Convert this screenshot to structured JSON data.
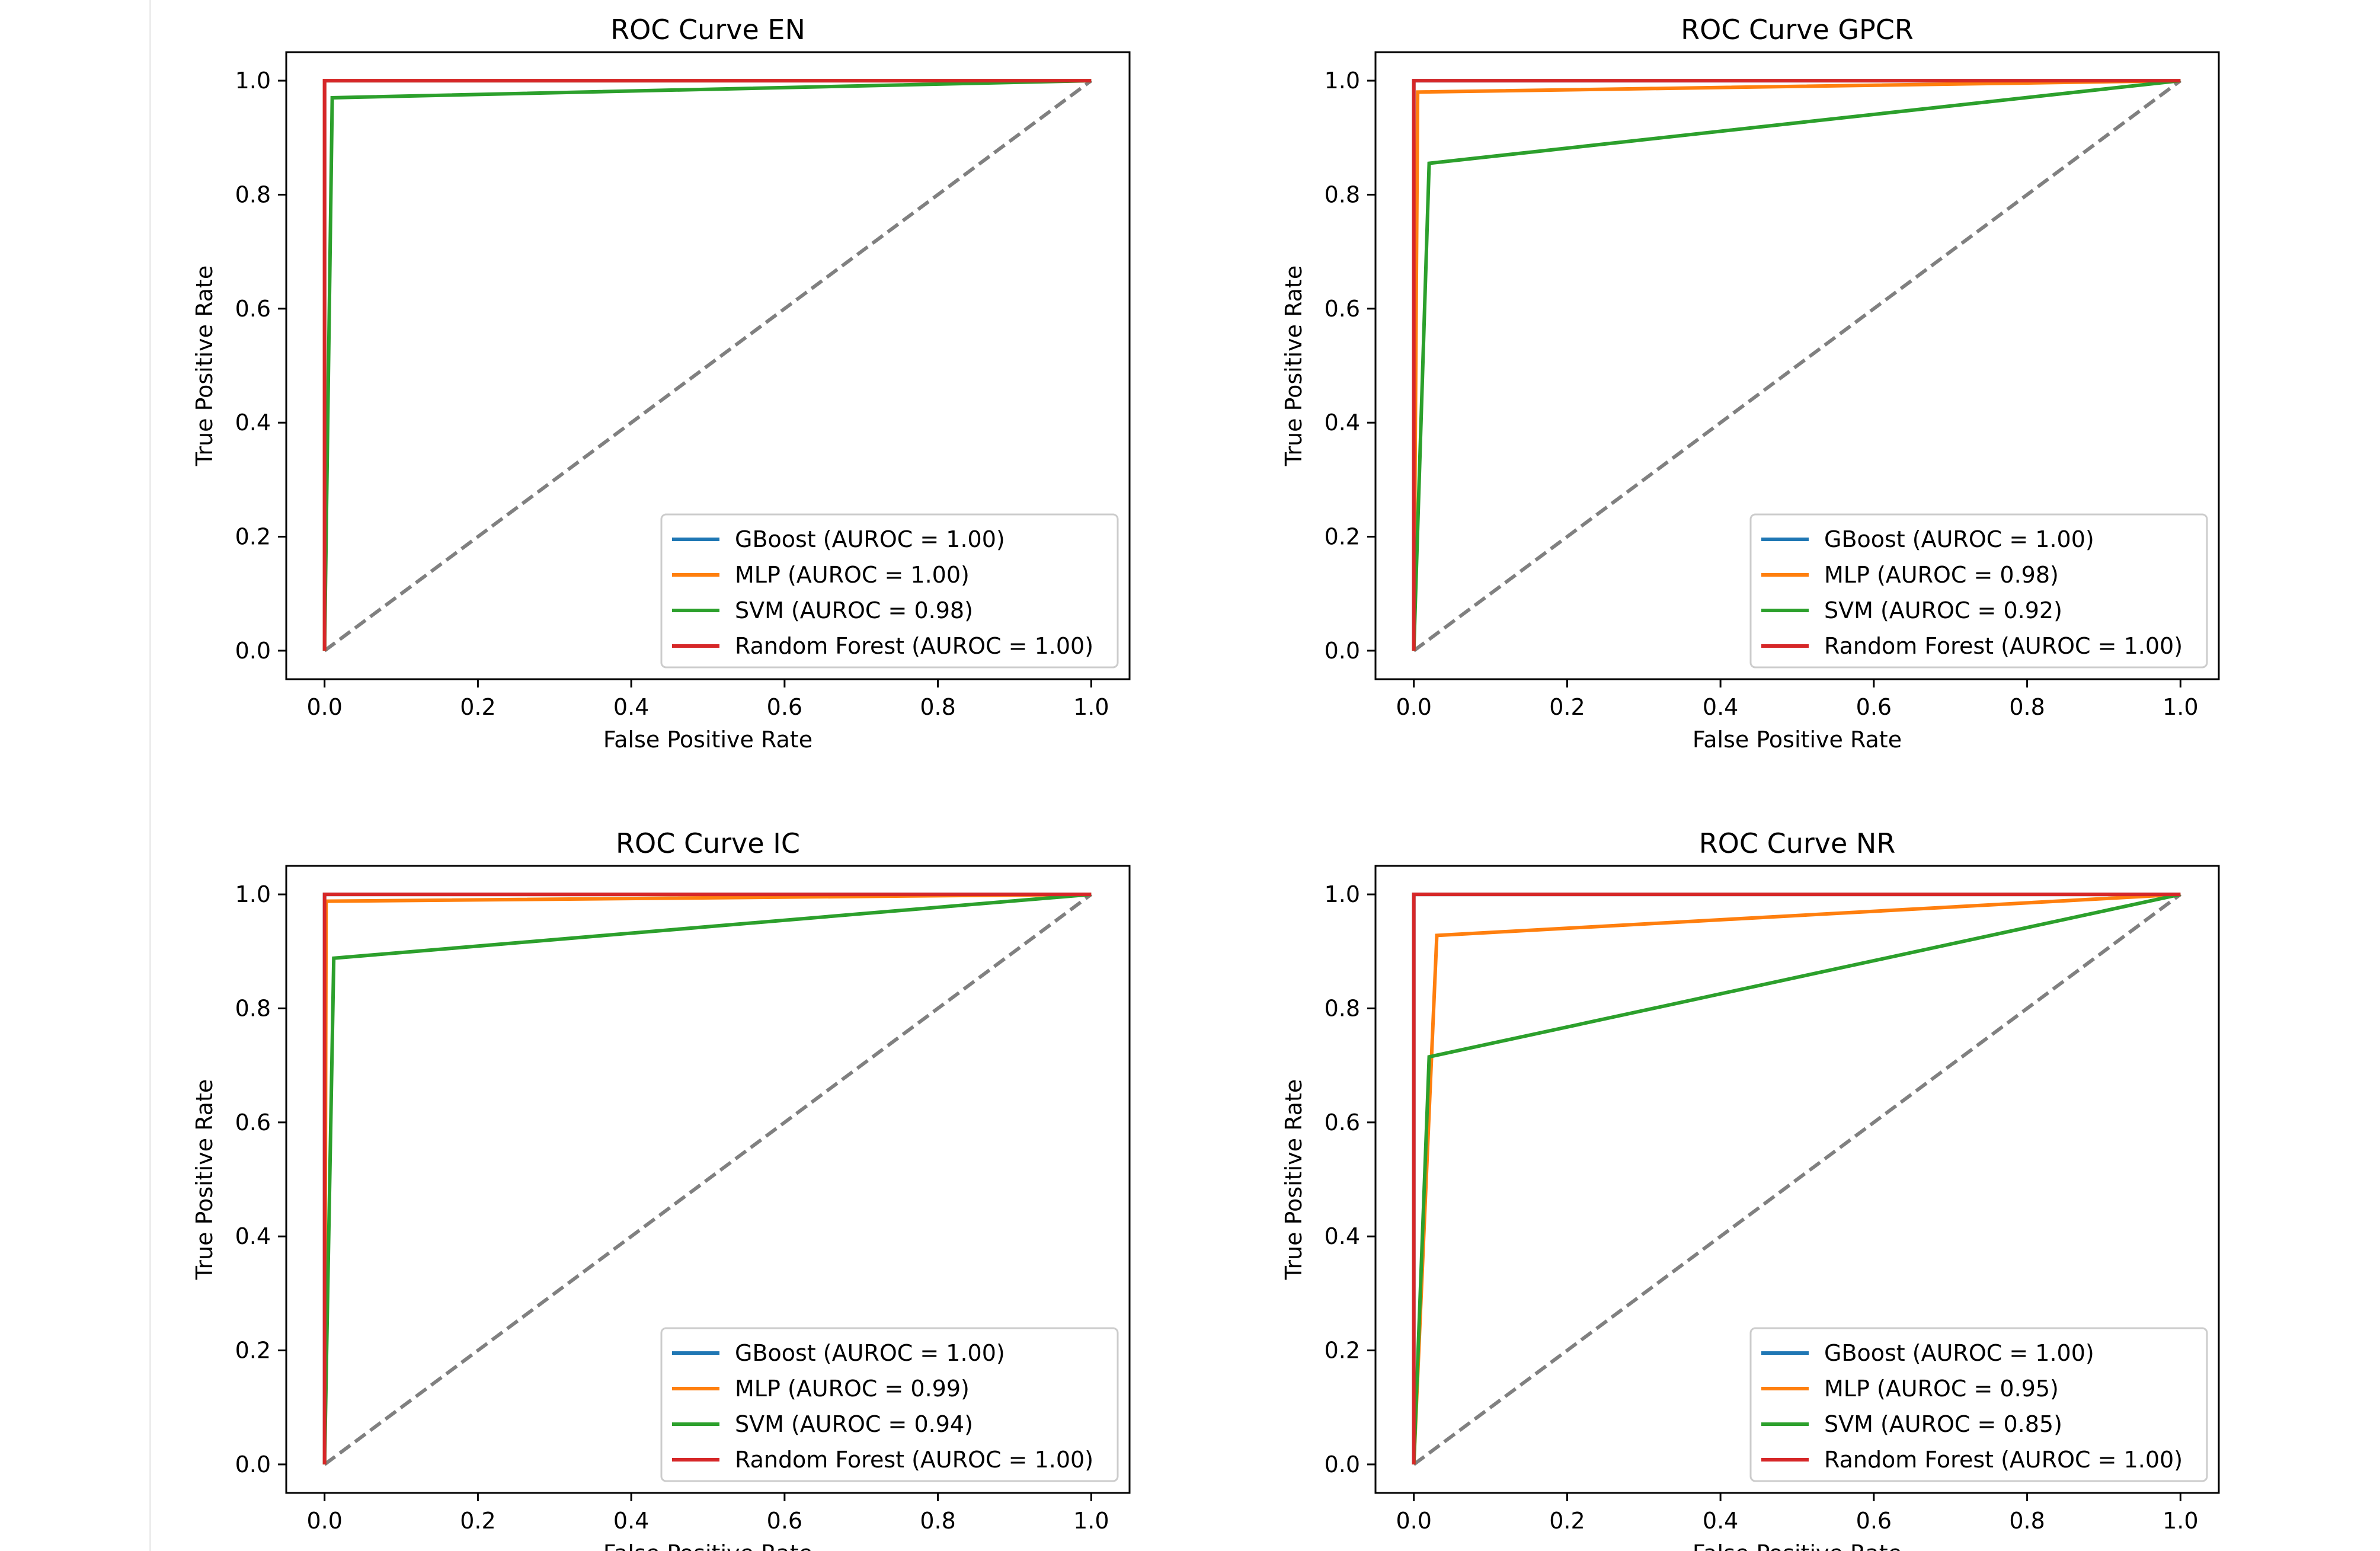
{
  "colors": {
    "GBoost": "#1f77b4",
    "MLP": "#ff7f0e",
    "SVM": "#2ca02c",
    "Random Forest": "#d62728",
    "diagonal": "#808080",
    "axes": "#000000",
    "legend_border": "#cccccc"
  },
  "chart_data": [
    {
      "type": "line",
      "title": "ROC Curve EN",
      "xlabel": "False Positive Rate",
      "ylabel": "True Positive Rate",
      "xlim": [
        -0.05,
        1.05
      ],
      "ylim": [
        -0.05,
        1.05
      ],
      "xticks": [
        "0.0",
        "0.2",
        "0.4",
        "0.6",
        "0.8",
        "1.0"
      ],
      "yticks": [
        "0.0",
        "0.2",
        "0.4",
        "0.6",
        "0.8",
        "1.0"
      ],
      "grid": false,
      "legend_position": "lower right",
      "diagonal": {
        "x": [
          0,
          1
        ],
        "y": [
          0,
          1
        ],
        "style": "dashed"
      },
      "series": [
        {
          "name": "GBoost",
          "label": "GBoost (AUROC = 1.00)",
          "x": [
            0,
            0,
            1
          ],
          "y": [
            0,
            1,
            1
          ]
        },
        {
          "name": "MLP",
          "label": "MLP (AUROC = 1.00)",
          "x": [
            0,
            0,
            1
          ],
          "y": [
            0,
            1,
            1
          ]
        },
        {
          "name": "SVM",
          "label": "SVM (AUROC = 0.98)",
          "x": [
            0,
            0.01,
            1
          ],
          "y": [
            0,
            0.97,
            1
          ]
        },
        {
          "name": "Random Forest",
          "label": "Random Forest (AUROC = 1.00)",
          "x": [
            0,
            0,
            1
          ],
          "y": [
            0,
            1,
            1
          ]
        }
      ]
    },
    {
      "type": "line",
      "title": "ROC Curve GPCR",
      "xlabel": "False Positive Rate",
      "ylabel": "True Positive Rate",
      "xlim": [
        -0.05,
        1.05
      ],
      "ylim": [
        -0.05,
        1.05
      ],
      "xticks": [
        "0.0",
        "0.2",
        "0.4",
        "0.6",
        "0.8",
        "1.0"
      ],
      "yticks": [
        "0.0",
        "0.2",
        "0.4",
        "0.6",
        "0.8",
        "1.0"
      ],
      "grid": false,
      "legend_position": "lower right",
      "diagonal": {
        "x": [
          0,
          1
        ],
        "y": [
          0,
          1
        ],
        "style": "dashed"
      },
      "series": [
        {
          "name": "GBoost",
          "label": "GBoost (AUROC = 1.00)",
          "x": [
            0,
            0,
            1
          ],
          "y": [
            0,
            1,
            1
          ]
        },
        {
          "name": "MLP",
          "label": "MLP (AUROC = 0.98)",
          "x": [
            0,
            0.005,
            1
          ],
          "y": [
            0,
            0.98,
            1
          ]
        },
        {
          "name": "SVM",
          "label": "SVM (AUROC = 0.92)",
          "x": [
            0,
            0.02,
            1
          ],
          "y": [
            0,
            0.855,
            1
          ]
        },
        {
          "name": "Random Forest",
          "label": "Random Forest (AUROC = 1.00)",
          "x": [
            0,
            0,
            1
          ],
          "y": [
            0,
            1,
            1
          ]
        }
      ]
    },
    {
      "type": "line",
      "title": "ROC Curve IC",
      "xlabel": "False Positive Rate",
      "ylabel": "True Positive Rate",
      "xlim": [
        -0.05,
        1.05
      ],
      "ylim": [
        -0.05,
        1.05
      ],
      "xticks": [
        "0.0",
        "0.2",
        "0.4",
        "0.6",
        "0.8",
        "1.0"
      ],
      "yticks": [
        "0.0",
        "0.2",
        "0.4",
        "0.6",
        "0.8",
        "1.0"
      ],
      "grid": false,
      "legend_position": "lower right",
      "diagonal": {
        "x": [
          0,
          1
        ],
        "y": [
          0,
          1
        ],
        "style": "dashed"
      },
      "series": [
        {
          "name": "GBoost",
          "label": "GBoost (AUROC = 1.00)",
          "x": [
            0,
            0,
            1
          ],
          "y": [
            0,
            1,
            1
          ]
        },
        {
          "name": "MLP",
          "label": "MLP (AUROC = 0.99)",
          "x": [
            0,
            0.002,
            1
          ],
          "y": [
            0,
            0.988,
            1
          ]
        },
        {
          "name": "SVM",
          "label": "SVM (AUROC = 0.94)",
          "x": [
            0,
            0.012,
            1
          ],
          "y": [
            0,
            0.888,
            1
          ]
        },
        {
          "name": "Random Forest",
          "label": "Random Forest (AUROC = 1.00)",
          "x": [
            0,
            0,
            1
          ],
          "y": [
            0,
            1,
            1
          ]
        }
      ]
    },
    {
      "type": "line",
      "title": "ROC Curve NR",
      "xlabel": "False Positive Rate",
      "ylabel": "True Positive Rate",
      "xlim": [
        -0.05,
        1.05
      ],
      "ylim": [
        -0.05,
        1.05
      ],
      "xticks": [
        "0.0",
        "0.2",
        "0.4",
        "0.6",
        "0.8",
        "1.0"
      ],
      "yticks": [
        "0.0",
        "0.2",
        "0.4",
        "0.6",
        "0.8",
        "1.0"
      ],
      "grid": false,
      "legend_position": "lower right",
      "diagonal": {
        "x": [
          0,
          1
        ],
        "y": [
          0,
          1
        ],
        "style": "dashed"
      },
      "series": [
        {
          "name": "GBoost",
          "label": "GBoost (AUROC = 1.00)",
          "x": [
            0,
            0,
            1
          ],
          "y": [
            0,
            1,
            1
          ]
        },
        {
          "name": "MLP",
          "label": "MLP (AUROC = 0.95)",
          "x": [
            0,
            0.03,
            1
          ],
          "y": [
            0,
            0.928,
            1
          ]
        },
        {
          "name": "SVM",
          "label": "SVM (AUROC = 0.85)",
          "x": [
            0,
            0.02,
            1
          ],
          "y": [
            0,
            0.715,
            1
          ]
        },
        {
          "name": "Random Forest",
          "label": "Random Forest (AUROC = 1.00)",
          "x": [
            0,
            0,
            1
          ],
          "y": [
            0,
            1,
            1
          ]
        }
      ]
    }
  ]
}
